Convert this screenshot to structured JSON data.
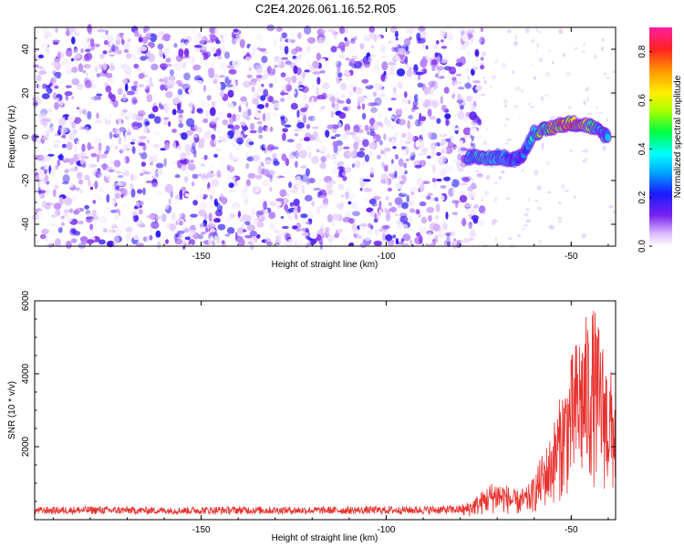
{
  "title": "C2E4.2026.061.16.52.R05",
  "chart_data": [
    {
      "type": "heatmap",
      "xlabel": "Height of straight line (km)",
      "ylabel": "Frequency (Hz)",
      "xlim": [
        -195,
        -38
      ],
      "ylim": [
        -50,
        50
      ],
      "xticks": [
        -150,
        -100,
        -50
      ],
      "yticks": [
        -40,
        -20,
        0,
        20,
        40
      ],
      "xtick_labels": [
        "-150",
        "-100",
        "-50"
      ],
      "ytick_labels": [
        "-40",
        "-20",
        "0",
        "20",
        "40"
      ],
      "noise_region_x": [
        -195,
        -78
      ],
      "noise_level": 0.12,
      "signal_track": [
        {
          "x": -78,
          "y": -10,
          "amp": 0.35
        },
        {
          "x": -75,
          "y": -9,
          "amp": 0.45
        },
        {
          "x": -72,
          "y": -10,
          "amp": 0.4
        },
        {
          "x": -69,
          "y": -9,
          "amp": 0.38
        },
        {
          "x": -66,
          "y": -11,
          "amp": 0.3
        },
        {
          "x": -63,
          "y": -8,
          "amp": 0.28
        },
        {
          "x": -60,
          "y": 2,
          "amp": 0.45
        },
        {
          "x": -57,
          "y": 3,
          "amp": 0.6
        },
        {
          "x": -54,
          "y": 5,
          "amp": 0.8
        },
        {
          "x": -51,
          "y": 6,
          "amp": 0.9
        },
        {
          "x": -48,
          "y": 6,
          "amp": 0.75
        },
        {
          "x": -45,
          "y": 5,
          "amp": 0.55
        },
        {
          "x": -42,
          "y": 2,
          "amp": 0.4
        },
        {
          "x": -40,
          "y": 0,
          "amp": 0.3
        }
      ],
      "colorbar": {
        "label": "Normalized spectral amplitude",
        "range": [
          0,
          0.9
        ],
        "ticks": [
          0,
          0.2,
          0.4,
          0.6,
          0.8
        ],
        "tick_labels": [
          "0.0",
          "0.2",
          "0.4",
          "0.6",
          "0.8"
        ]
      }
    },
    {
      "type": "line",
      "xlabel": "Height of straight line (km)",
      "ylabel": "SNR (10 * v/v)",
      "xlim": [
        -195,
        -38
      ],
      "ylim": [
        0,
        6000
      ],
      "xticks": [
        -150,
        -100,
        -50
      ],
      "yticks": [
        2000,
        4000,
        6000
      ],
      "xtick_labels": [
        "-150",
        "-100",
        "-50"
      ],
      "ytick_labels": [
        "2000",
        "4000",
        "6000"
      ],
      "color": "#e8312e",
      "envelope": [
        {
          "x": -195,
          "y": 300
        },
        {
          "x": -180,
          "y": 320
        },
        {
          "x": -160,
          "y": 300
        },
        {
          "x": -140,
          "y": 320
        },
        {
          "x": -120,
          "y": 310
        },
        {
          "x": -100,
          "y": 320
        },
        {
          "x": -90,
          "y": 330
        },
        {
          "x": -80,
          "y": 350
        },
        {
          "x": -75,
          "y": 700
        },
        {
          "x": -72,
          "y": 1000
        },
        {
          "x": -70,
          "y": 1100
        },
        {
          "x": -68,
          "y": 1000
        },
        {
          "x": -65,
          "y": 800
        },
        {
          "x": -62,
          "y": 900
        },
        {
          "x": -60,
          "y": 1200
        },
        {
          "x": -58,
          "y": 1800
        },
        {
          "x": -56,
          "y": 2200
        },
        {
          "x": -54,
          "y": 3000
        },
        {
          "x": -52,
          "y": 3800
        },
        {
          "x": -50,
          "y": 4500
        },
        {
          "x": -48,
          "y": 5200
        },
        {
          "x": -46,
          "y": 5600
        },
        {
          "x": -44,
          "y": 5900
        },
        {
          "x": -42,
          "y": 5200
        },
        {
          "x": -40,
          "y": 4300
        },
        {
          "x": -38,
          "y": 3800
        }
      ]
    }
  ]
}
